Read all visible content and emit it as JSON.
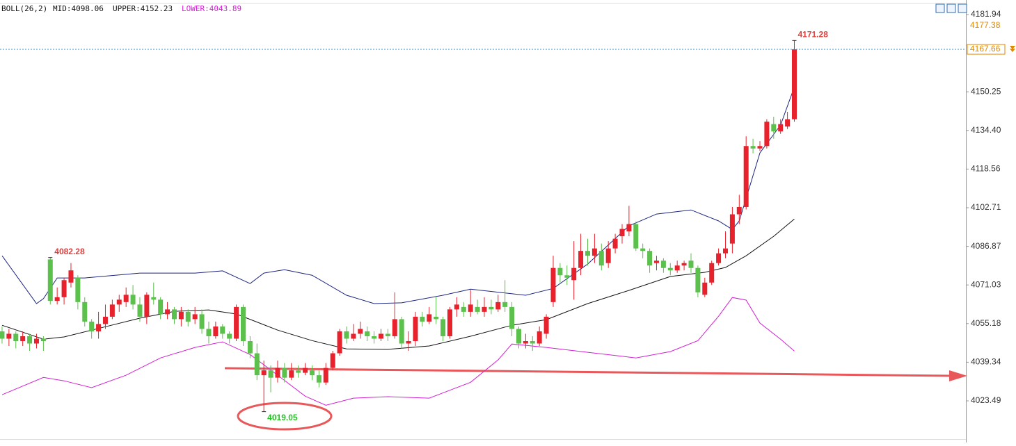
{
  "chart_data": {
    "type": "candlestick",
    "indicator": {
      "title": "BOLL(26,2)",
      "mid": "MID:4098.06",
      "upper": "UPPER:4152.23",
      "lower": "LOWER:4043.89"
    },
    "up_color": "#e8222d",
    "down_color": "#5cc04c",
    "open": [
      4052,
      4049,
      4051,
      4048,
      4050,
      4047,
      4049,
      4081.5,
      4064.5,
      4066,
      4072,
      4074,
      4064,
      4056,
      4052,
      4055,
      4058,
      4063,
      4064,
      4067,
      4063,
      4058,
      4066,
      4065,
      4059,
      4061,
      4057,
      4060,
      4057,
      4059,
      4053,
      4050,
      4054,
      4051,
      4049,
      4062,
      4048,
      4043,
      4034,
      4036,
      4033,
      4037,
      4033,
      4036,
      4035,
      4036,
      4034,
      4031,
      4037,
      4043,
      4052,
      4049,
      4051,
      4052,
      4050,
      4049,
      4051,
      4050,
      4057,
      4047,
      4048,
      4058,
      4056,
      4058,
      4057,
      4050,
      4061,
      4062,
      4060,
      4062,
      4060,
      4062,
      4061,
      4064,
      4062,
      4053,
      4047,
      4048,
      4047,
      4051,
      4064,
      4078,
      4075,
      4073,
      4078,
      4085,
      4083,
      4085,
      4080,
      4086,
      4091,
      4093,
      4096,
      4086,
      4085,
      4080,
      4081,
      4078,
      4077,
      4079,
      4081,
      4078,
      4067,
      4072,
      4080,
      4084,
      4088,
      4100,
      4103,
      4128,
      4127,
      4128,
      4137,
      4134,
      4136,
      4139
    ],
    "high": [
      4054,
      4053,
      4052,
      4052,
      4051,
      4051,
      4050,
      4082.28,
      4070,
      4074,
      4080,
      4075,
      4066,
      4057,
      4060,
      4063,
      4065,
      4067,
      4070,
      4071,
      4066,
      4068,
      4072,
      4066,
      4064,
      4062,
      4062,
      4061,
      4062,
      4061,
      4056,
      4056,
      4055,
      4052,
      4063,
      4063,
      4050,
      4047,
      4040,
      4038,
      4040,
      4039,
      4039,
      4038,
      4039,
      4038,
      4036,
      4039,
      4044,
      4053,
      4054,
      4055,
      4056,
      4054,
      4052,
      4053,
      4053,
      4068,
      4058,
      4052,
      4060,
      4060,
      4062,
      4066,
      4058,
      4062,
      4066,
      4064,
      4069,
      4065,
      4066,
      4065,
      4067,
      4073,
      4064,
      4054,
      4051,
      4050,
      4054,
      4059,
      4083,
      4080,
      4079,
      4089,
      4092,
      4090,
      4092,
      4088,
      4089,
      4092,
      4096,
      4103.5,
      4097,
      4088,
      4086,
      4083,
      4082,
      4080,
      4081,
      4081,
      4084,
      4079,
      4074,
      4081,
      4086,
      4093,
      4103,
      4108,
      4132,
      4131,
      4130,
      4139,
      4140,
      4139,
      4142,
      4171.28
    ],
    "low": [
      4047,
      4046,
      4045,
      4046,
      4044,
      4045,
      4044,
      4063,
      4063,
      4063,
      4070,
      4061,
      4054,
      4049,
      4049,
      4053,
      4057,
      4060,
      4062,
      4061,
      4056,
      4055,
      4063,
      4057,
      4057,
      4055,
      4054,
      4054,
      4055,
      4051,
      4047,
      4049,
      4049,
      4047,
      4048,
      4046,
      4041,
      4032,
      4019.05,
      4027,
      4031,
      4031,
      4032,
      4033,
      4034,
      4032,
      4029,
      4030,
      4036,
      4042,
      4047,
      4048,
      4049,
      4048,
      4047,
      4048,
      4048,
      4049,
      4045,
      4044,
      4046,
      4054,
      4055,
      4055,
      4048,
      4049,
      4058,
      4058,
      4058,
      4059,
      4058,
      4059,
      4060,
      4060,
      4050,
      4045,
      4045,
      4044,
      4046,
      4049,
      4062,
      4072,
      4071,
      4065,
      4075,
      4079,
      4080,
      4077,
      4078,
      4084,
      4088,
      4091,
      4085,
      4082,
      4076,
      4077,
      4076,
      4075,
      4076,
      4077,
      4076,
      4066,
      4066,
      4071,
      4079,
      4082,
      4084,
      4096,
      4102,
      4125,
      4126,
      4127,
      4131,
      4133,
      4135,
      4138
    ],
    "close": [
      4049,
      4051,
      4048,
      4050,
      4047,
      4049,
      4048,
      4064.5,
      4066,
      4073,
      4077,
      4064,
      4056,
      4052,
      4055,
      4058,
      4063,
      4065,
      4067,
      4063,
      4058,
      4067,
      4065,
      4059,
      4061,
      4057,
      4060,
      4056,
      4059,
      4053,
      4050,
      4054,
      4051,
      4049,
      4062,
      4048,
      4043,
      4034,
      4036,
      4033,
      4037,
      4033,
      4036,
      4035,
      4037,
      4034,
      4031,
      4037,
      4043,
      4052,
      4049,
      4051,
      4053,
      4050,
      4049,
      4051,
      4050,
      4057,
      4047,
      4048,
      4058,
      4056,
      4059,
      4057,
      4050,
      4061,
      4063,
      4060,
      4063,
      4060,
      4062,
      4061,
      4064,
      4062,
      4053,
      4047,
      4048,
      4047,
      4052,
      4058,
      4078,
      4075,
      4074,
      4078,
      4085,
      4083,
      4086,
      4079,
      4086,
      4090,
      4094,
      4096,
      4086,
      4085,
      4079,
      4081,
      4078,
      4077,
      4079,
      4080,
      4078,
      4068,
      4072,
      4080,
      4084,
      4086,
      4100,
      4103,
      4128,
      4127,
      4128,
      4138,
      4134,
      4137,
      4139,
      4167.66
    ],
    "bands": [
      {
        "color": "#1a237e",
        "x": [
          0,
          5,
          6,
          8,
          12,
          20,
          28,
          32,
          36,
          38,
          41,
          45,
          50,
          54,
          58,
          64,
          68,
          76,
          80,
          85,
          91,
          95,
          100,
          104,
          106,
          107,
          110,
          113,
          115
        ],
        "values": [
          4083.0,
          4063.4,
          4065.4,
          4073.9,
          4073.9,
          4075.9,
          4075.9,
          4076.8,
          4071.6,
          4075.9,
          4077.3,
          4075.0,
          4066.8,
          4063.4,
          4063.7,
          4066.8,
          4069.3,
          4066.8,
          4069.6,
          4079.6,
          4095.3,
          4100.1,
          4101.8,
          4097.3,
          4093.8,
          4097.3,
          4125.2,
          4136.6,
          4152.23
        ]
      },
      {
        "color": "#111111",
        "x": [
          0,
          6,
          9,
          15,
          20,
          25,
          30,
          34,
          40,
          45,
          50,
          56,
          62,
          68,
          74,
          79,
          85,
          91,
          97,
          102,
          105,
          108,
          112,
          115
        ],
        "values": [
          4054.5,
          4048.8,
          4049.7,
          4053.9,
          4057.4,
          4060.2,
          4060.8,
          4059.1,
          4052.5,
          4048.2,
          4044.8,
          4044.6,
          4046.0,
          4050.0,
          4054.5,
          4056.8,
          4063.4,
          4068.8,
          4074.5,
          4076.2,
          4078.2,
          4083.0,
          4091.0,
          4098.06
        ]
      },
      {
        "color": "#d21fd2",
        "x": [
          0,
          6,
          9,
          13,
          18,
          23,
          28,
          32,
          36,
          40,
          44,
          47,
          51,
          56,
          62,
          68,
          72,
          74,
          79,
          85,
          92,
          97,
          101,
          104,
          106,
          108,
          110,
          113,
          115
        ],
        "values": [
          4026.0,
          4033.1,
          4031.7,
          4028.9,
          4034.0,
          4041.1,
          4045.4,
          4047.7,
          4042.5,
          4034.0,
          4025.4,
          4021.7,
          4024.6,
          4025.2,
          4024.6,
          4031.1,
          4040.3,
          4046.8,
          4045.4,
          4043.4,
          4041.1,
          4043.7,
          4048.2,
          4058.2,
          4065.9,
          4064.8,
          4055.4,
          4048.8,
          4043.89
        ]
      }
    ],
    "xlim": [
      -0.3,
      139.9
    ],
    "ylim": [
      4006.4,
      4187.9
    ],
    "yticks": [
      4181.94,
      4150.25,
      {
        "value": 4134.4,
        "label": "4134.40"
      },
      4118.56,
      4102.71,
      4086.87,
      4071.03,
      4055.18,
      4039.34,
      4023.49
    ],
    "price_labels": [
      4177.38,
      4167.66
    ]
  }
}
